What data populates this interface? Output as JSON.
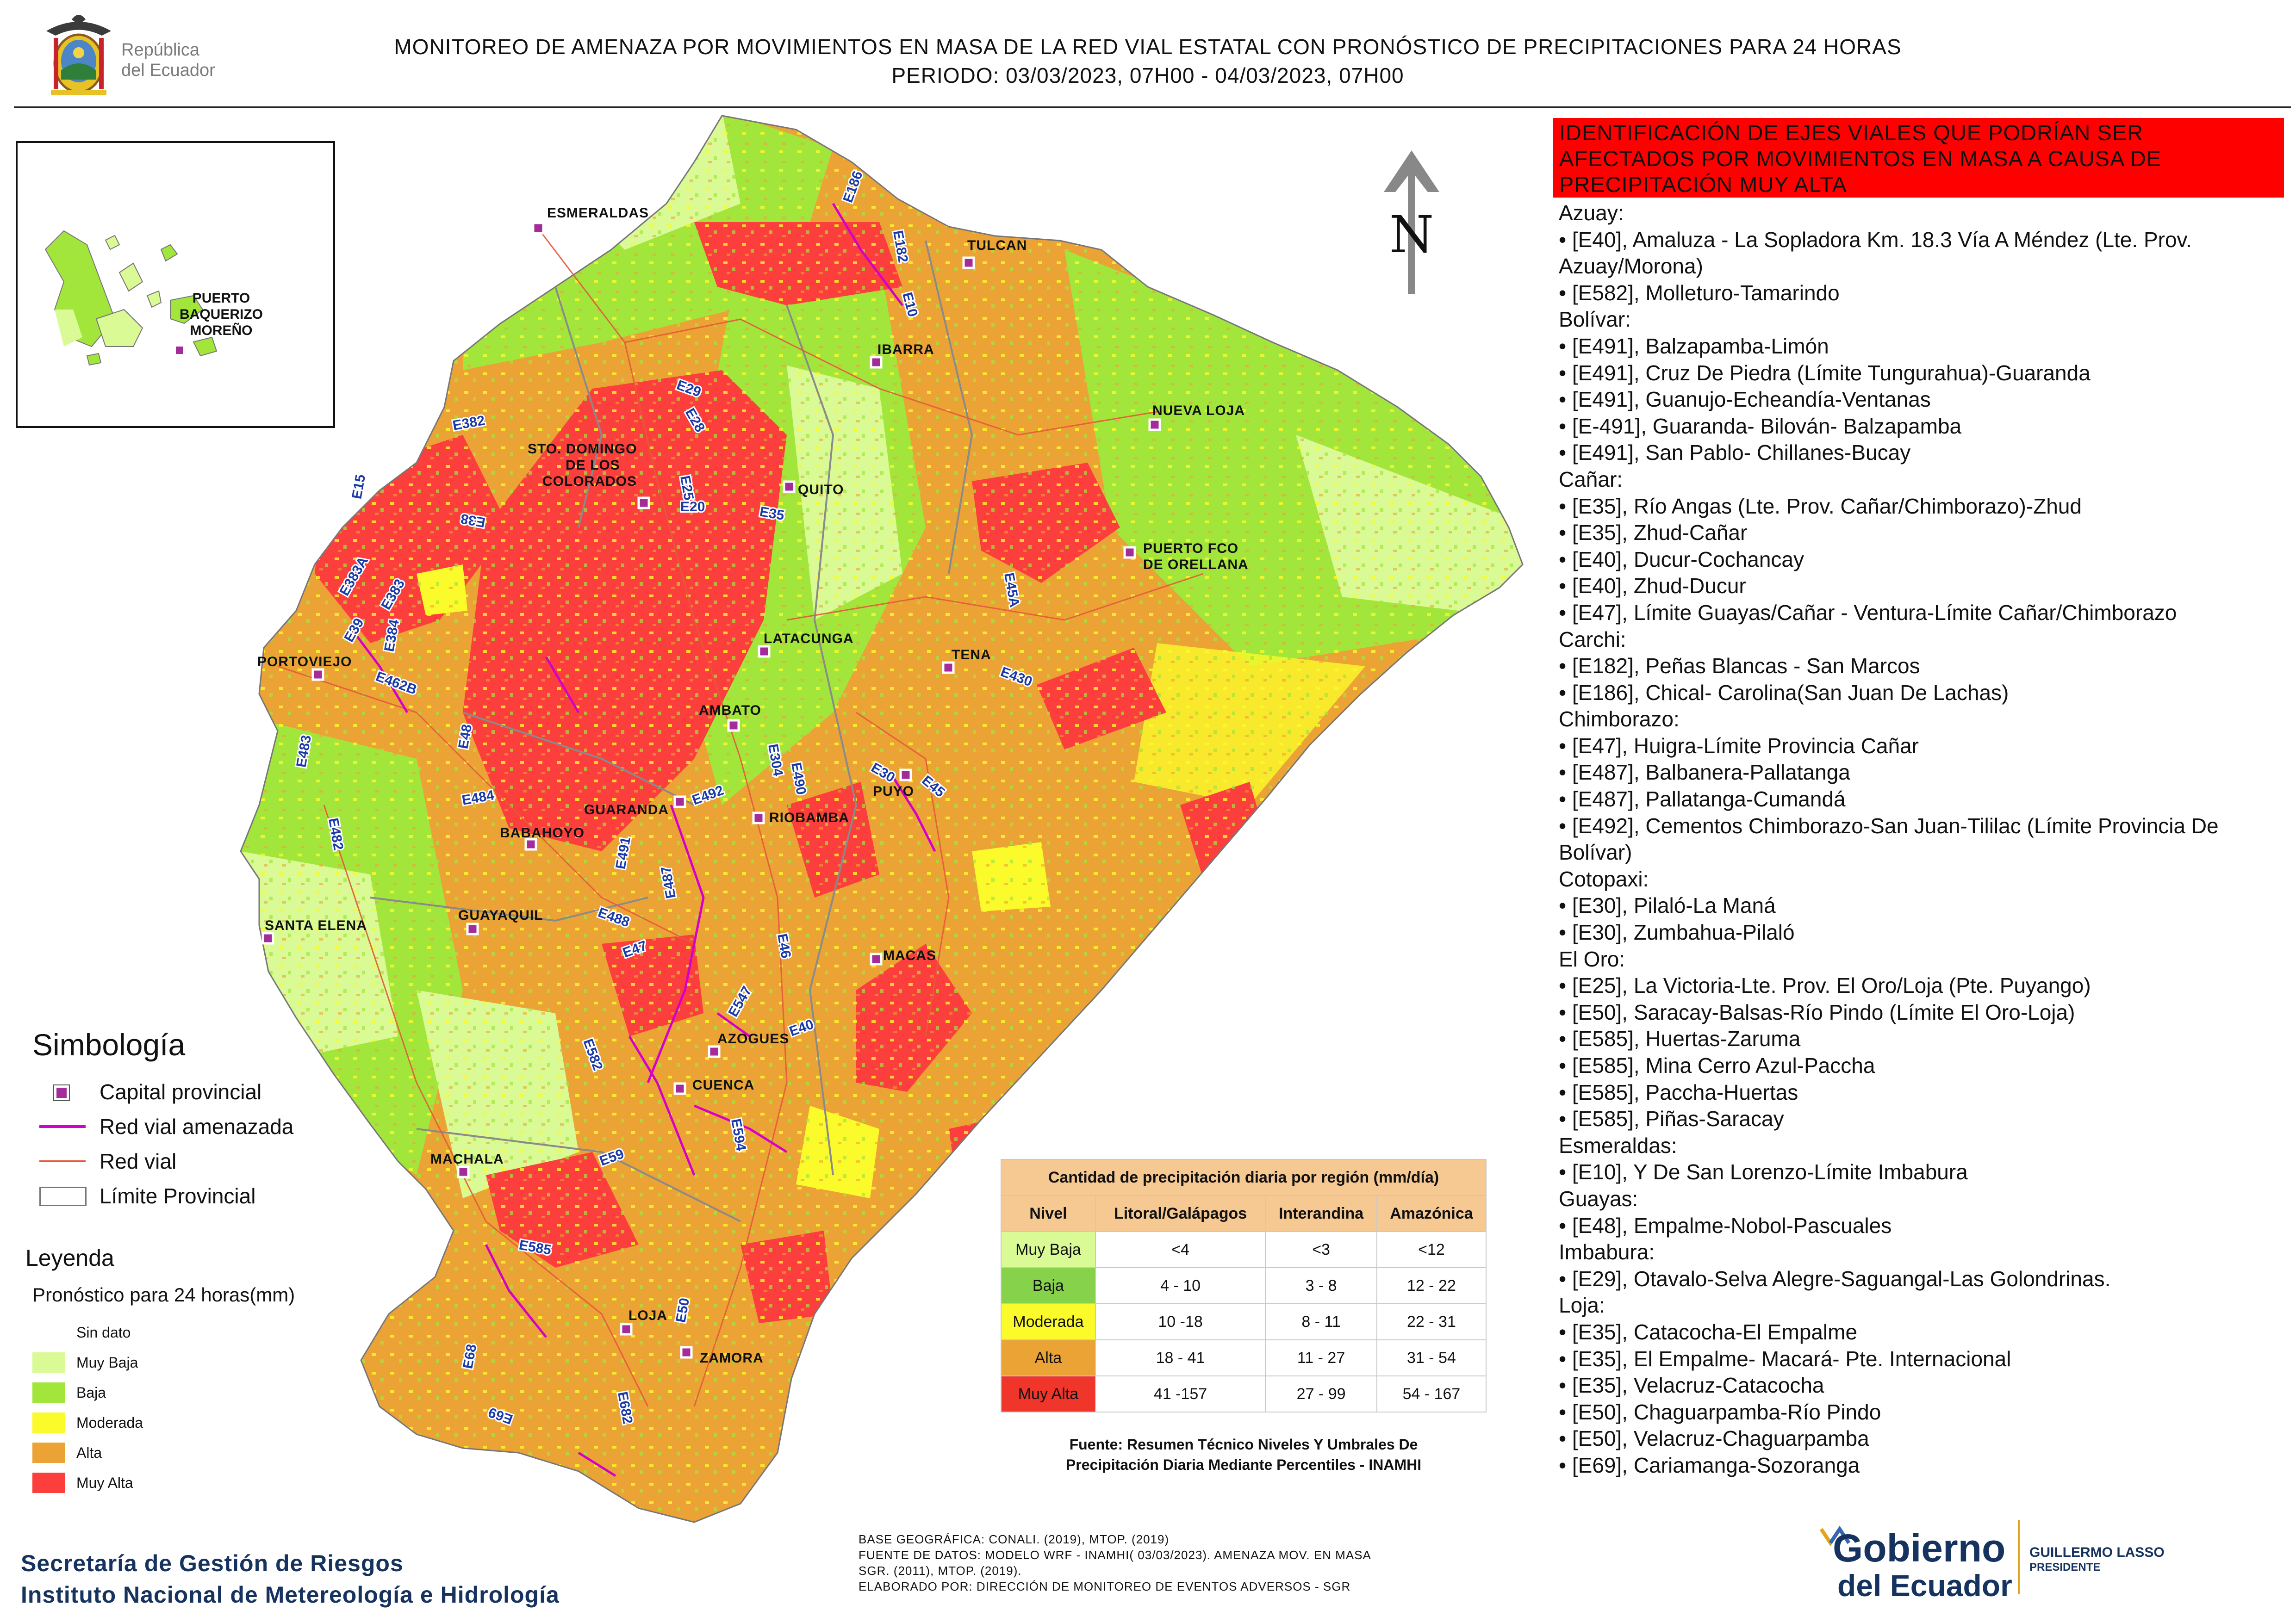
{
  "header": {
    "country_line1": "República",
    "country_line2": "del Ecuador",
    "title_line1": "MONITOREO DE AMENAZA POR MOVIMIENTOS EN MASA DE LA RED VIAL  ESTATAL  CON PRONÓSTICO  DE  PRECIPITACIONES PARA 24 HORAS",
    "title_line2": "PERIODO: 03/03/2023, 07H00 - 04/03/2023, 07H00"
  },
  "map": {
    "north_label": "N",
    "cities": [
      "ESMERALDAS",
      "TULCAN",
      "IBARRA",
      "NUEVA LOJA",
      "STO. DOMINGO",
      "DE LOS",
      "COLORADOS",
      "QUITO",
      "PUERTO FCO",
      "DE ORELLANA",
      "PORTOVIEJO",
      "LATACUNGA",
      "TENA",
      "AMBATO",
      "PUYO",
      "GUARANDA",
      "RIOBAMBA",
      "BABAHOYO",
      "SANTA ELENA",
      "GUAYAQUIL",
      "MACAS",
      "AZOGUES",
      "CUENCA",
      "MACHALA",
      "LOJA",
      "ZAMORA"
    ],
    "roads": [
      "E10",
      "E182",
      "E186",
      "E29",
      "E28",
      "E382",
      "E15",
      "E38",
      "E25",
      "E20",
      "E35",
      "E383A",
      "E383",
      "E39",
      "E384",
      "E462B",
      "E48",
      "E483",
      "E482",
      "E484",
      "E30",
      "E45",
      "E430",
      "E45A",
      "E40",
      "E304",
      "E490",
      "E492",
      "E491",
      "E487",
      "E488",
      "E47",
      "E46",
      "E547",
      "E582",
      "E594",
      "E59",
      "E585",
      "E50",
      "E68",
      "E69",
      "E682"
    ],
    "inset_city_lines": [
      "PUERTO",
      "BAQUERIZO",
      "MOREÑO"
    ]
  },
  "simbologia": {
    "title": "Simbología",
    "items": [
      "Capital provincial",
      "Red vial amenazada",
      "Red vial",
      "Límite Provincial"
    ]
  },
  "leyenda": {
    "title": "Leyenda",
    "subtitle": "Pronóstico para 24 horas(mm)",
    "items": [
      {
        "label": "Sin dato",
        "color": "#ffffff"
      },
      {
        "label": " Muy Baja",
        "color": "#d9fa94"
      },
      {
        "label": "Baja",
        "color": "#a2e63c"
      },
      {
        "label": "Moderada",
        "color": "#fbfa2a"
      },
      {
        "label": "Alta",
        "color": "#eba336"
      },
      {
        "label": "Muy Alta",
        "color": "#fc3e3c"
      }
    ]
  },
  "precip_table": {
    "title": "Cantidad de precipitación diaria por región (mm/día)",
    "headers": [
      "Nivel",
      "Litoral/Galápagos",
      "Interandina",
      "Amazónica"
    ],
    "rows": [
      {
        "nivel": "Muy Baja",
        "litoral": "<4",
        "interandina": "<3",
        "amazonica": "<12",
        "color": "#d9fa94"
      },
      {
        "nivel": "Baja",
        "litoral": "4 - 10",
        "interandina": "3 - 8",
        "amazonica": "12 - 22",
        "color": "#86d24a"
      },
      {
        "nivel": "Moderada",
        "litoral": "10 -18",
        "interandina": "8 - 11",
        "amazonica": "22 - 31",
        "color": "#fbfa2a"
      },
      {
        "nivel": "Alta",
        "litoral": "18 - 41",
        "interandina": "11 - 27",
        "amazonica": "31 - 54",
        "color": "#eba336"
      },
      {
        "nivel": "Muy Alta",
        "litoral": "41 -157",
        "interandina": "27 - 99",
        "amazonica": "54 - 167",
        "color": "#f0352a"
      }
    ],
    "header_color": "#f6c892",
    "caption_line1": "Fuente: Resumen Técnico Niveles Y Umbrales De",
    "caption_line2": "Precipitación Diaria Mediante Percentiles - INAMHI"
  },
  "identification": {
    "banner": "IDENTIFICACIÓN DE EJES VIALES QUE PODRÍAN SER AFECTADOS POR MOVIMIENTOS EN MASA A CAUSA DE PRECIPITACIÓN MUY ALTA",
    "lines": [
      "Azuay:",
      "• [E40], Amaluza - La Sopladora Km. 18.3 Vía A Méndez (Lte. Prov. Azuay/Morona)",
      "• [E582], Molleturo-Tamarindo",
      "Bolívar:",
      "• [E491], Balzapamba-Limón",
      "• [E491], Cruz De Piedra (Límite Tungurahua)-Guaranda",
      "• [E491], Guanujo-Echeandía-Ventanas",
      "• [E-491], Guaranda- Bilován- Balzapamba",
      "• [E491], San Pablo- Chillanes-Bucay",
      "Cañar:",
      "• [E35], Río Angas (Lte. Prov. Cañar/Chimborazo)-Zhud",
      "• [E35], Zhud-Cañar",
      "• [E40], Ducur-Cochancay",
      "• [E40], Zhud-Ducur",
      "• [E47], Límite Guayas/Cañar - Ventura-Límite Cañar/Chimborazo",
      "Carchi:",
      "• [E182], Peñas Blancas - San Marcos",
      "• [E186], Chical- Carolina(San Juan De Lachas)",
      "Chimborazo:",
      "• [E47], Huigra-Límite Provincia Cañar",
      "• [E487], Balbanera-Pallatanga",
      "• [E487], Pallatanga-Cumandá",
      "• [E492], Cementos Chimborazo-San Juan-Tililac (Límite Provincia De Bolívar)",
      "Cotopaxi:",
      "• [E30], Pilaló-La Maná",
      "• [E30], Zumbahua-Pilaló",
      "El Oro:",
      "• [E25], La Victoria-Lte. Prov. El Oro/Loja (Pte. Puyango)",
      "• [E50], Saracay-Balsas-Río Pindo (Límite El Oro-Loja)",
      "• [E585], Huertas-Zaruma",
      "• [E585], Mina Cerro Azul-Paccha",
      "• [E585], Paccha-Huertas",
      "• [E585], Piñas-Saracay",
      "Esmeraldas:",
      "• [E10], Y De San Lorenzo-Límite Imbabura",
      "Guayas:",
      "• [E48], Empalme-Nobol-Pascuales",
      "Imbabura:",
      "• [E29], Otavalo-Selva Alegre-Saguangal-Las Golondrinas.",
      "Loja:",
      "• [E35], Catacocha-El Empalme",
      "• [E35], El Empalme- Macará- Pte. Internacional",
      "• [E35], Velacruz-Catacocha",
      "• [E50], Chaguarpamba-Río Pindo",
      "• [E50], Velacruz-Chaguarpamba",
      "• [E69], Cariamanga-Sozoranga"
    ]
  },
  "footer": {
    "institution_line1": "Secretaría de Gestión de Riesgos",
    "institution_line2": "Instituto Nacional de Metereología e Hidrología",
    "source_line1": "BASE GEOGRÁFICA: CONALI. (2019), MTOP. (2019)",
    "source_line2": "FUENTE DE DATOS: MODELO WRF - INAMHI( 03/03/2023).  AMENAZA MOV. EN MASA",
    "source_line3": "SGR. (2011), MTOP. (2019).",
    "source_line4": "ELABORADO POR: DIRECCIÓN DE MONITOREO DE EVENTOS ADVERSOS - SGR",
    "gob_line1": "Gobierno",
    "gob_line2": "del Ecuador",
    "president_name": "GUILLERMO LASSO",
    "president_title": "PRESIDENTE"
  },
  "colors": {
    "muy_baja": "#d9fa94",
    "baja": "#a2e63c",
    "moderada": "#fbfa2a",
    "alta": "#eba336",
    "muy_alta": "#fc3e3c",
    "threatened_road": "#d400c8",
    "road": "#e45a3a",
    "capital_marker": "#a32c9a",
    "banner_red": "#ff0000",
    "institution_blue": "#16335f"
  }
}
